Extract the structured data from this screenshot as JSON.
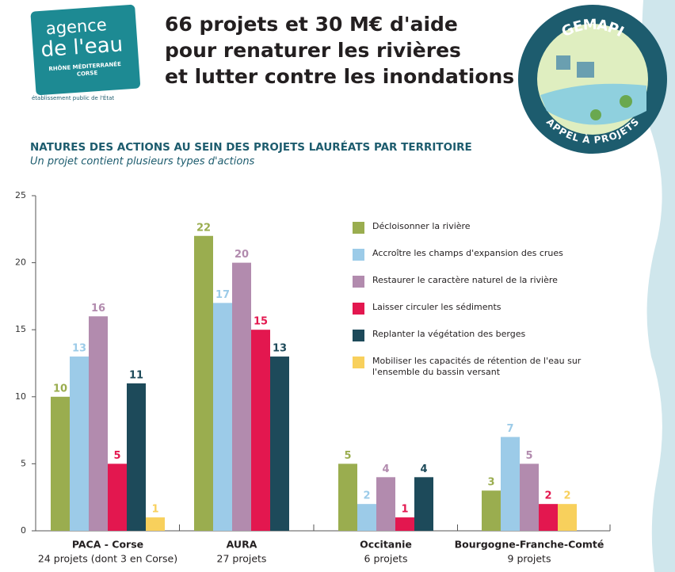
{
  "header": {
    "logo_line1": "agence",
    "logo_line2": "de l'eau",
    "logo_line3": "RHÔNE MÉDITERRANÉE",
    "logo_line4": "CORSE",
    "logo_caption": "établissement public de l'État",
    "title_lines": [
      "66 projets et 30 M€ d'aide",
      "pour renaturer les rivières",
      "et lutter contre les inondations"
    ],
    "badge_top": "GEMAPI",
    "badge_bottom": "APPEL À PROJETS"
  },
  "chart_data": {
    "type": "bar",
    "title": "NATURES DES ACTIONS AU SEIN DES PROJETS LAURÉATS PAR TERRITOIRE",
    "subtitle": "Un projet contient plusieurs types d'actions",
    "categories": [
      "PACA - Corse",
      "AURA",
      "Occitanie",
      "Bourgogne-Franche-Comté"
    ],
    "category_notes": [
      "24 projets (dont 3 en Corse)",
      "27 projets",
      "6 projets",
      "9 projets"
    ],
    "series": [
      {
        "name": "Décloisonner la rivière",
        "color": "#9aad4f",
        "values": [
          10,
          22,
          5,
          3
        ]
      },
      {
        "name": "Accroître les champs d'expansion des crues",
        "color": "#9ccbe8",
        "values": [
          13,
          17,
          2,
          7
        ]
      },
      {
        "name": "Restaurer le caractère naturel de la rivière",
        "color": "#b28bae",
        "values": [
          16,
          20,
          4,
          5
        ]
      },
      {
        "name": "Laisser circuler les sédiments",
        "color": "#e3174f",
        "values": [
          5,
          15,
          1,
          2
        ]
      },
      {
        "name": "Replanter la végétation des berges",
        "color": "#1d4a5a",
        "values": [
          11,
          13,
          4,
          null
        ]
      },
      {
        "name": "Mobiliser les capacités de rétention de l'eau sur l'ensemble du bassin versant",
        "color": "#f8d05c",
        "values": [
          1,
          null,
          null,
          2
        ]
      }
    ],
    "ylim": [
      0,
      25
    ],
    "yticks": [
      0,
      5,
      10,
      15,
      20,
      25
    ]
  }
}
